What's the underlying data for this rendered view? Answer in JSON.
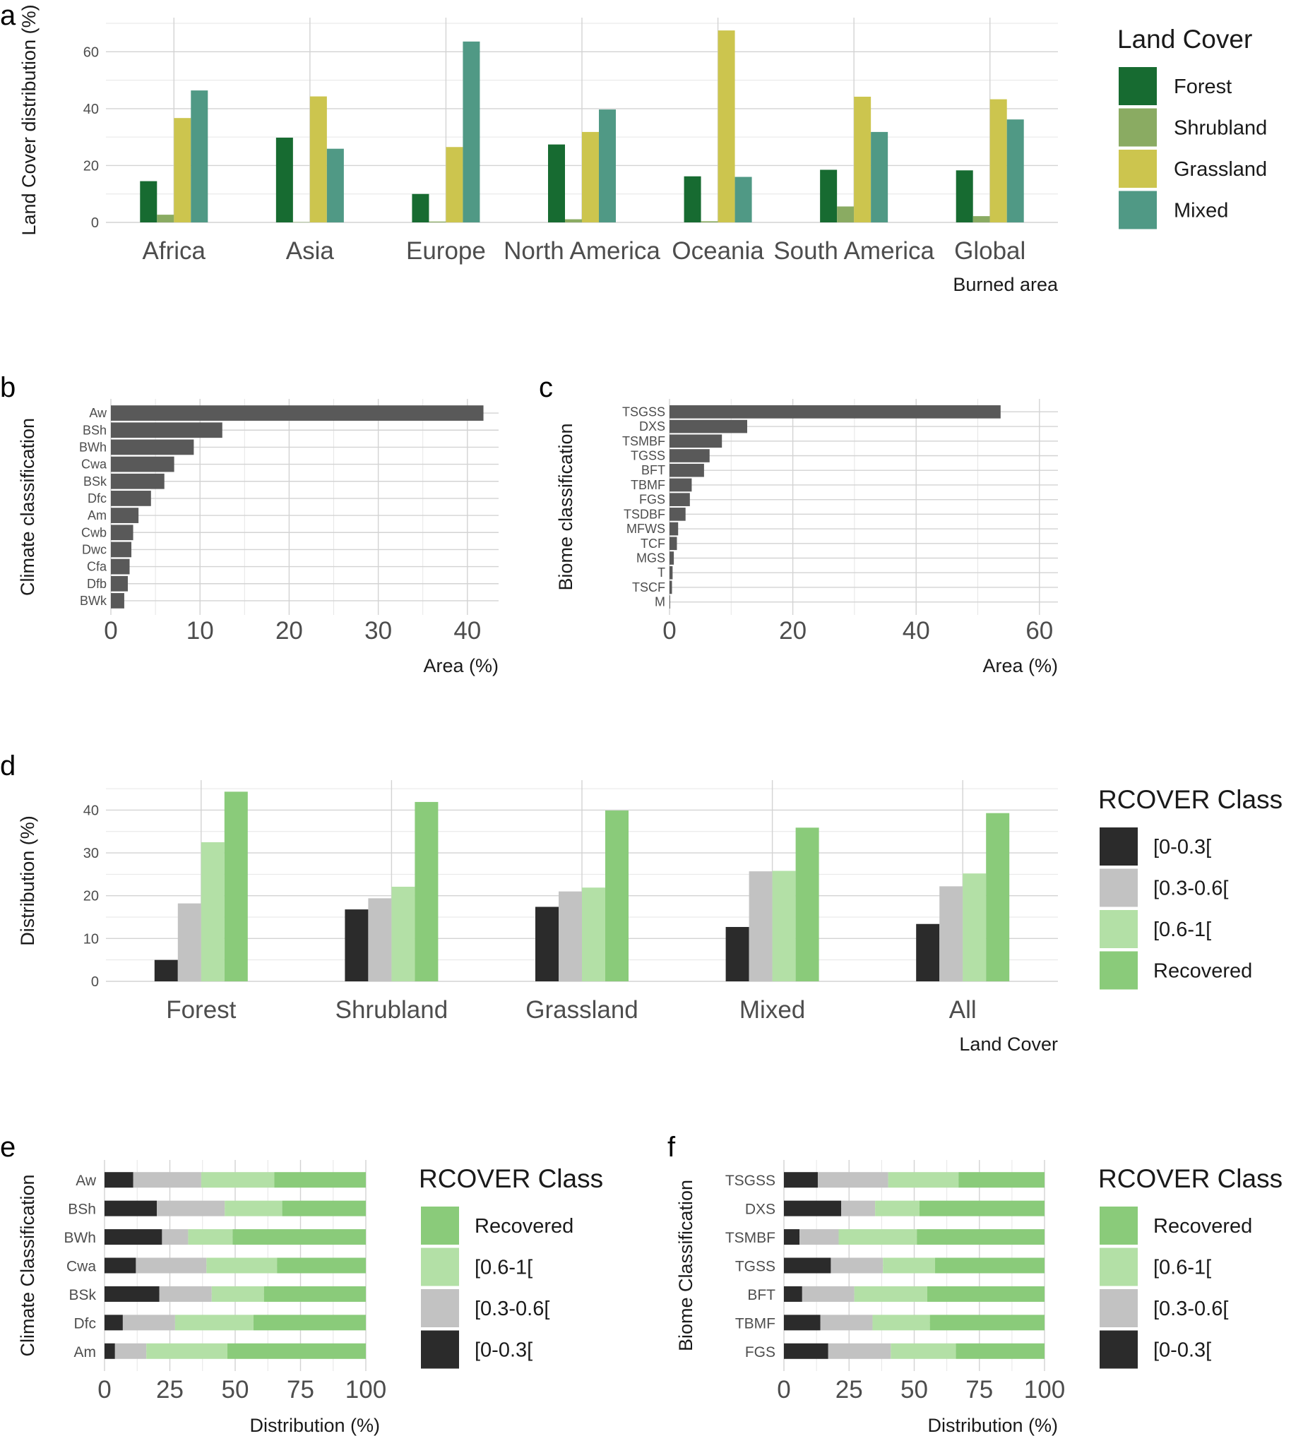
{
  "colors": {
    "grid": "#d3d3d3",
    "bar_dark": "#595959",
    "tick_text": "#4d4d4d",
    "text": "#1a1a1a",
    "forest": "#176b31",
    "shrubland": "#8aab62",
    "grassland": "#ccc54e",
    "mixed": "#509985",
    "r_low": "#2b2b2b",
    "r_mid": "#c2c2c2",
    "r_high": "#b3e0a6",
    "r_rec": "#8acb7a"
  },
  "chart_data": [
    {
      "id": "a",
      "panel_label": "a",
      "type": "bar",
      "title": "",
      "xlabel": "Burned area",
      "ylabel": "Land Cover distribution (%)",
      "categories": [
        "Africa",
        "Asia",
        "Europe",
        "North  America",
        "Oceania",
        "South  America",
        "Global"
      ],
      "ylim": [
        0,
        72
      ],
      "yticks": [
        0,
        20,
        40,
        60
      ],
      "grid": true,
      "legend": {
        "title": "Land Cover",
        "position": "right"
      },
      "series": [
        {
          "name": "Forest",
          "color_key": "forest",
          "values": [
            14.5,
            29.8,
            10.0,
            27.4,
            16.2,
            18.5,
            18.3
          ]
        },
        {
          "name": "Shrubland",
          "color_key": "shrubland",
          "values": [
            2.7,
            0.1,
            0.3,
            1.1,
            0.4,
            5.6,
            2.2
          ]
        },
        {
          "name": "Grassland",
          "color_key": "grassland",
          "values": [
            36.7,
            44.3,
            26.5,
            31.8,
            67.5,
            44.2,
            43.3
          ]
        },
        {
          "name": "Mixed",
          "color_key": "mixed",
          "values": [
            46.4,
            25.9,
            63.6,
            39.7,
            16.0,
            31.8,
            36.2
          ]
        }
      ]
    },
    {
      "id": "b",
      "panel_label": "b",
      "type": "bar",
      "orientation": "horizontal",
      "title": "",
      "xlabel": "Area (%)",
      "ylabel": "Climate classification",
      "categories": [
        "Aw",
        "BSh",
        "BWh",
        "Cwa",
        "BSk",
        "Dfc",
        "Am",
        "Cwb",
        "Dwc",
        "Cfa",
        "Dfb",
        "BWk"
      ],
      "values": [
        41.8,
        12.5,
        9.3,
        7.1,
        6.0,
        4.5,
        3.1,
        2.5,
        2.3,
        2.1,
        1.9,
        1.5
      ],
      "xlim": [
        0,
        43.5
      ],
      "xticks": [
        0,
        10,
        20,
        30,
        40
      ],
      "grid": true
    },
    {
      "id": "c",
      "panel_label": "c",
      "type": "bar",
      "orientation": "horizontal",
      "title": "",
      "xlabel": "Area (%)",
      "ylabel": "Biome classification",
      "categories": [
        "TSGSS",
        "DXS",
        "TSMBF",
        "TGSS",
        "BFT",
        "TBMF",
        "FGS",
        "TSDBF",
        "MFWS",
        "TCF",
        "MGS",
        "T",
        "TSCF",
        "M"
      ],
      "values": [
        53.7,
        12.6,
        8.5,
        6.5,
        5.6,
        3.6,
        3.3,
        2.6,
        1.4,
        1.2,
        0.7,
        0.5,
        0.4,
        0.1
      ],
      "xlim": [
        0,
        63
      ],
      "xticks": [
        0,
        20,
        40,
        60
      ],
      "grid": true
    },
    {
      "id": "d",
      "panel_label": "d",
      "type": "bar",
      "title": "",
      "xlabel": "Land Cover",
      "ylabel": "Distribution (%)",
      "categories": [
        "Forest",
        "Shrubland",
        "Grassland",
        "Mixed",
        "All"
      ],
      "ylim": [
        0,
        47
      ],
      "yticks": [
        0,
        10,
        20,
        30,
        40
      ],
      "grid": true,
      "legend": {
        "title": "RCOVER Class",
        "position": "right"
      },
      "series": [
        {
          "name": "[0-0.3[",
          "color_key": "r_low",
          "values": [
            5.0,
            16.8,
            17.4,
            12.7,
            13.4
          ]
        },
        {
          "name": "[0.3-0.6[",
          "color_key": "r_mid",
          "values": [
            18.2,
            19.4,
            21.0,
            25.7,
            22.2
          ]
        },
        {
          "name": "[0.6-1[",
          "color_key": "r_high",
          "values": [
            32.5,
            22.1,
            21.9,
            25.8,
            25.2
          ]
        },
        {
          "name": "Recovered",
          "color_key": "r_rec",
          "values": [
            44.3,
            41.9,
            39.9,
            35.9,
            39.3
          ]
        }
      ]
    },
    {
      "id": "e",
      "panel_label": "e",
      "type": "bar",
      "orientation": "horizontal",
      "stacked": true,
      "title": "",
      "xlabel": "Distribution (%)",
      "ylabel": "Climate Classification",
      "categories": [
        "Aw",
        "BSh",
        "BWh",
        "Cwa",
        "BSk",
        "Dfc",
        "Am"
      ],
      "xlim": [
        0,
        100
      ],
      "xticks": [
        0,
        25,
        50,
        75,
        100
      ],
      "grid": true,
      "legend": {
        "title": "RCOVER Class",
        "position": "right"
      },
      "series": [
        {
          "name": "[0-0.3[",
          "color_key": "r_low",
          "values": [
            11,
            20,
            22,
            12,
            21,
            7,
            4
          ]
        },
        {
          "name": "[0.3-0.6[",
          "color_key": "r_mid",
          "values": [
            26,
            26,
            10,
            27,
            20,
            20,
            12
          ]
        },
        {
          "name": "[0.6-1[",
          "color_key": "r_high",
          "values": [
            28,
            22,
            17,
            27,
            20,
            30,
            31
          ]
        },
        {
          "name": "Recovered",
          "color_key": "r_rec",
          "values": [
            35,
            32,
            51,
            34,
            39,
            43,
            53
          ]
        }
      ]
    },
    {
      "id": "f",
      "panel_label": "f",
      "type": "bar",
      "orientation": "horizontal",
      "stacked": true,
      "title": "",
      "xlabel": "Distribution (%)",
      "ylabel": "Biome Classification",
      "categories": [
        "TSGSS",
        "DXS",
        "TSMBF",
        "TGSS",
        "BFT",
        "TBMF",
        "FGS"
      ],
      "xlim": [
        0,
        100
      ],
      "xticks": [
        0,
        25,
        50,
        75,
        100
      ],
      "grid": true,
      "legend": {
        "title": "RCOVER Class",
        "position": "right"
      },
      "series": [
        {
          "name": "[0-0.3[",
          "color_key": "r_low",
          "values": [
            13,
            22,
            6,
            18,
            7,
            14,
            17
          ]
        },
        {
          "name": "[0.3-0.6[",
          "color_key": "r_mid",
          "values": [
            27,
            13,
            15,
            20,
            20,
            20,
            24
          ]
        },
        {
          "name": "[0.6-1[",
          "color_key": "r_high",
          "values": [
            27,
            17,
            30,
            20,
            28,
            22,
            25
          ]
        },
        {
          "name": "Recovered",
          "color_key": "r_rec",
          "values": [
            33,
            48,
            49,
            42,
            45,
            44,
            34
          ]
        }
      ]
    }
  ]
}
